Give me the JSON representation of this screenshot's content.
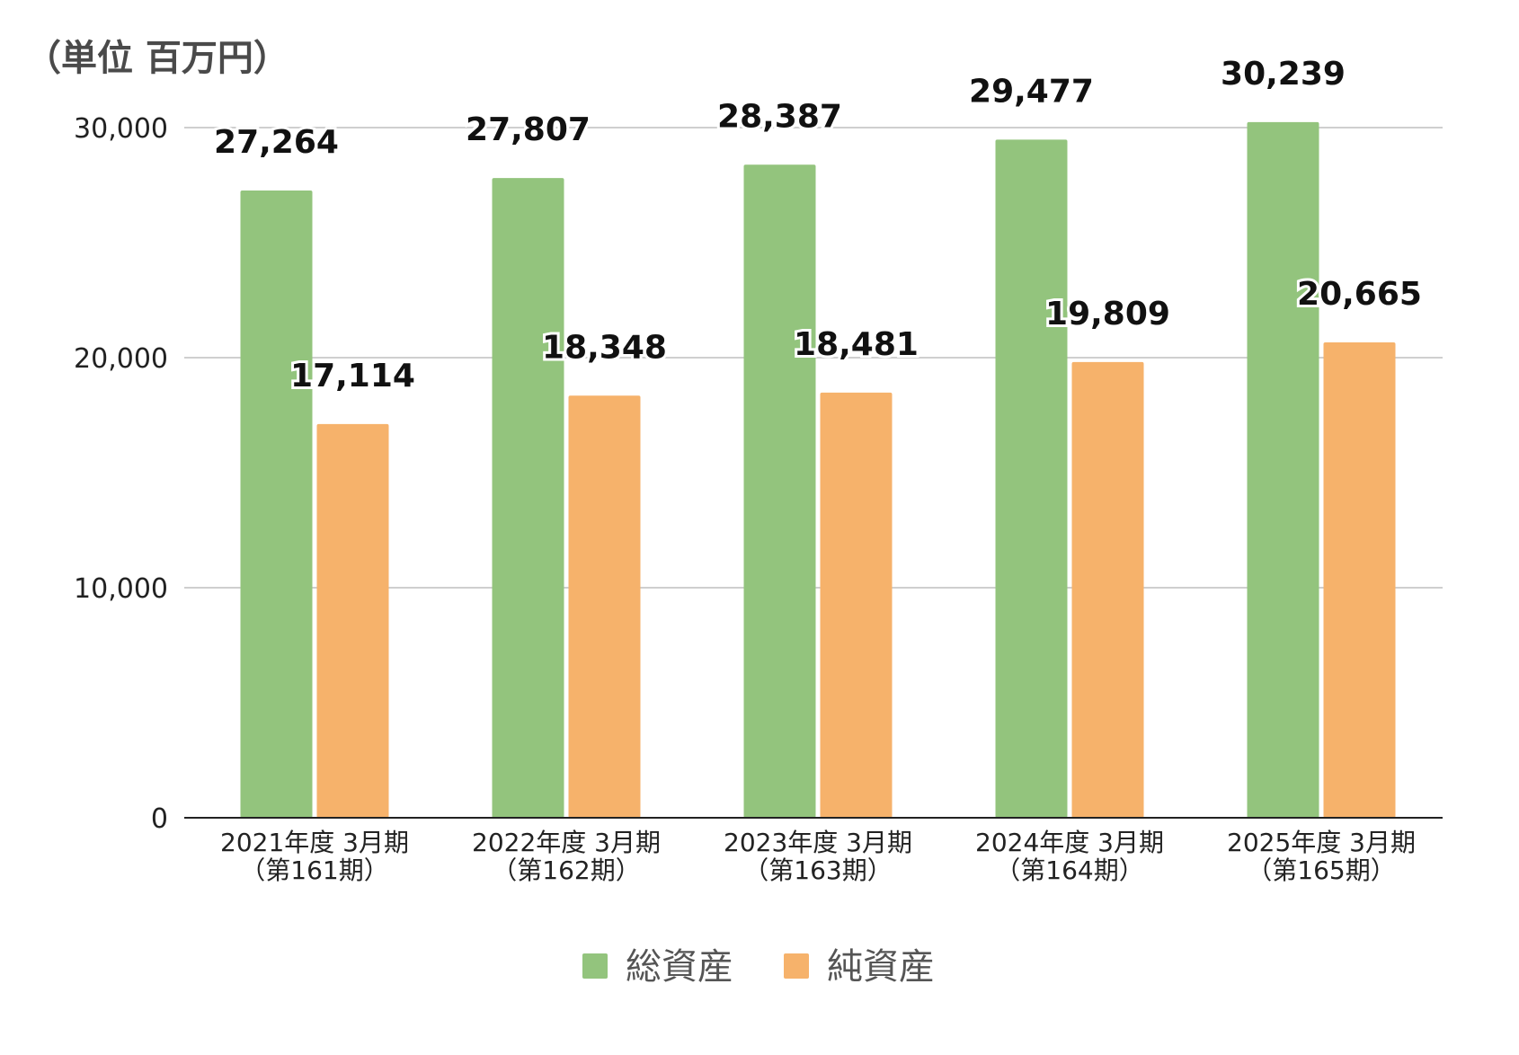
{
  "chart_data": {
    "type": "bar",
    "unit_label": "（単位 百万円）",
    "title": "",
    "xlabel": "",
    "ylabel": "",
    "ylim": [
      0,
      30000
    ],
    "yticks": [
      0,
      10000,
      20000,
      30000
    ],
    "ytick_labels": [
      "0",
      "10,000",
      "20,000",
      "30,000"
    ],
    "grid": true,
    "legend_position": "bottom",
    "categories": [
      {
        "line1": "2021年度 3月期",
        "line2": "（第161期）"
      },
      {
        "line1": "2022年度 3月期",
        "line2": "（第162期）"
      },
      {
        "line1": "2023年度 3月期",
        "line2": "（第163期）"
      },
      {
        "line1": "2024年度 3月期",
        "line2": "（第164期）"
      },
      {
        "line1": "2025年度 3月期",
        "line2": "（第165期）"
      }
    ],
    "series": [
      {
        "name": "総資産",
        "color": "#93c47d",
        "values": [
          27264,
          27807,
          28387,
          29477,
          30239
        ],
        "labels": [
          "27,264",
          "27,807",
          "28,387",
          "29,477",
          "30,239"
        ]
      },
      {
        "name": "純資産",
        "color": "#f6b26b",
        "values": [
          17114,
          18348,
          18481,
          19809,
          20665
        ],
        "labels": [
          "17,114",
          "18,348",
          "18,481",
          "19,809",
          "20,665"
        ]
      }
    ]
  }
}
